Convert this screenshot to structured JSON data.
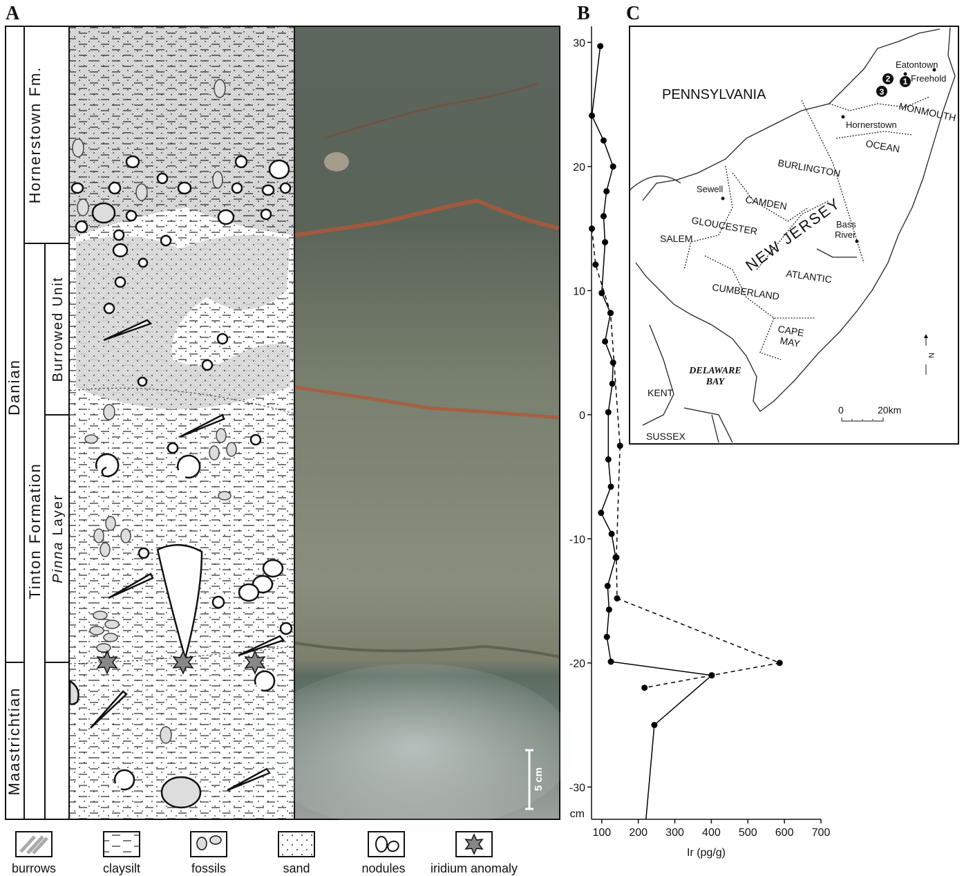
{
  "panels": {
    "a": "A",
    "b": "B",
    "c": "C"
  },
  "column": {
    "stage_upper": "Danian",
    "stage_lower": "Maastrichtian",
    "formation_upper": "Hornerstown Fm.",
    "formation_lower": "Tinton Formation",
    "unit_upper": "Burrowed Unit",
    "unit_lower_italic": "Pinna",
    "unit_lower": "Layer"
  },
  "scale_bar": "5 cm",
  "legend": [
    "burrows",
    "claysilt",
    "fossils",
    "sand",
    "nodules",
    "iridium anomaly"
  ],
  "chart_data": {
    "type": "line",
    "xlabel": "Ir (pg/g)",
    "ylabel": "cm",
    "xlim": [
      72,
      700
    ],
    "ylim": [
      -32.6,
      31.3
    ],
    "xticks": [
      100,
      200,
      300,
      400,
      500,
      600,
      700
    ],
    "yticks": [
      30,
      20,
      10,
      0,
      -10,
      -20,
      -30
    ],
    "series": [
      {
        "style": "solid",
        "color": "#000000",
        "x": [
          96,
          73,
          105,
          131,
          113,
          105,
          109,
          100,
          124,
          109,
          131,
          129,
          118,
          118,
          125,
          98,
          127,
          138,
          116,
          120,
          114,
          125,
          401,
          244,
          221
        ],
        "y": [
          29.7,
          24.1,
          22.1,
          20,
          18,
          16,
          13.9,
          9.8,
          8.2,
          5.9,
          4.2,
          2.5,
          0.2,
          -3.6,
          -5.8,
          -7.9,
          -9.6,
          -11.5,
          -13.8,
          -15.7,
          -17.9,
          -19.9,
          -21,
          -25,
          -32.6
        ]
      },
      {
        "style": "dashed",
        "color": "#000000",
        "x": [
          73,
          83,
          124,
          150,
          140,
          142,
          587,
          401,
          217
        ],
        "y": [
          15,
          12.1,
          8.2,
          -2.5,
          -11.5,
          -14.8,
          -20,
          -21,
          -22
        ]
      }
    ]
  },
  "map": {
    "states": [
      "PENNSYLVANIA",
      "NEW JERSEY"
    ],
    "counties": [
      "MONMOUTH",
      "OCEAN",
      "BURLINGTON",
      "CAMDEN",
      "GLOUCESTER",
      "SALEM",
      "ATLANTIC",
      "CUMBERLAND",
      "CAPE",
      "MAY",
      "KENT",
      "SUSSEX"
    ],
    "towns": [
      "Eatontown",
      "Freehold",
      "Hornerstown",
      "Sewell",
      "Bass",
      "River"
    ],
    "water": [
      "DELAWARE",
      "BAY"
    ],
    "sites": [
      "1",
      "2",
      "3"
    ],
    "north": "N",
    "scale_zero": "0",
    "scale_length": "20",
    "scale_unit": "km"
  }
}
